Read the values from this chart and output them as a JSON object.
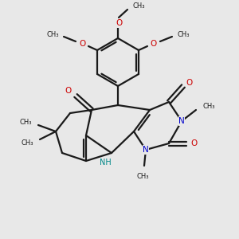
{
  "bg_color": "#e8e8e8",
  "bond_color": "#1a1a1a",
  "oxygen_color": "#cc0000",
  "nitrogen_color": "#0000cc",
  "nh_color": "#008888",
  "lw": 1.6,
  "figsize": [
    3.0,
    3.0
  ],
  "dpi": 100,
  "methoxy_labels": [
    "OCH₃",
    "OCH₃",
    "OCH₃"
  ],
  "n_methyl": "CH₃",
  "gem_dimethyl": [
    "CH₃",
    "CH₃"
  ]
}
